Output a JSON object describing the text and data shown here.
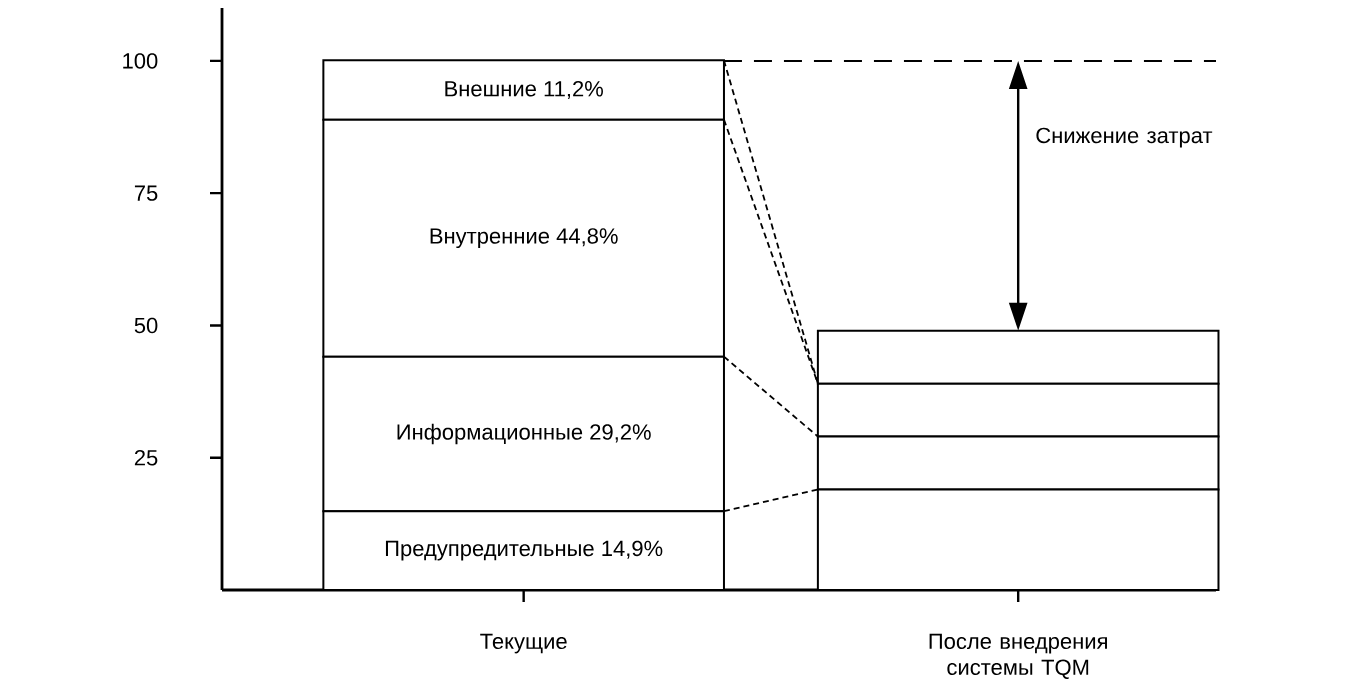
{
  "chart_data": {
    "type": "bar",
    "stacked": true,
    "categories": [
      "Текущие",
      "После внедрения системы TQM"
    ],
    "series": [
      {
        "name": "Предупредительные",
        "color": "#ffffff",
        "values": [
          14.9,
          19
        ],
        "value_labels": [
          "14,9%",
          null
        ]
      },
      {
        "name": "Информационные",
        "color": "#ffffff",
        "values": [
          29.2,
          10
        ],
        "value_labels": [
          "29,2%",
          null
        ]
      },
      {
        "name": "Внутренние",
        "color": "#ffffff",
        "values": [
          44.8,
          10
        ],
        "value_labels": [
          "44,8%",
          null
        ]
      },
      {
        "name": "Внешние",
        "color": "#ffffff",
        "values": [
          11.2,
          10
        ],
        "value_labels": [
          "11,2%",
          null
        ]
      }
    ],
    "ylim": [
      0,
      110
    ],
    "yticks": [
      25,
      50,
      75,
      100
    ],
    "ref_lines": [
      {
        "axis": "y",
        "value": 100,
        "line_style": "dashed"
      }
    ],
    "annotations": [
      "Снижение затрат"
    ]
  }
}
